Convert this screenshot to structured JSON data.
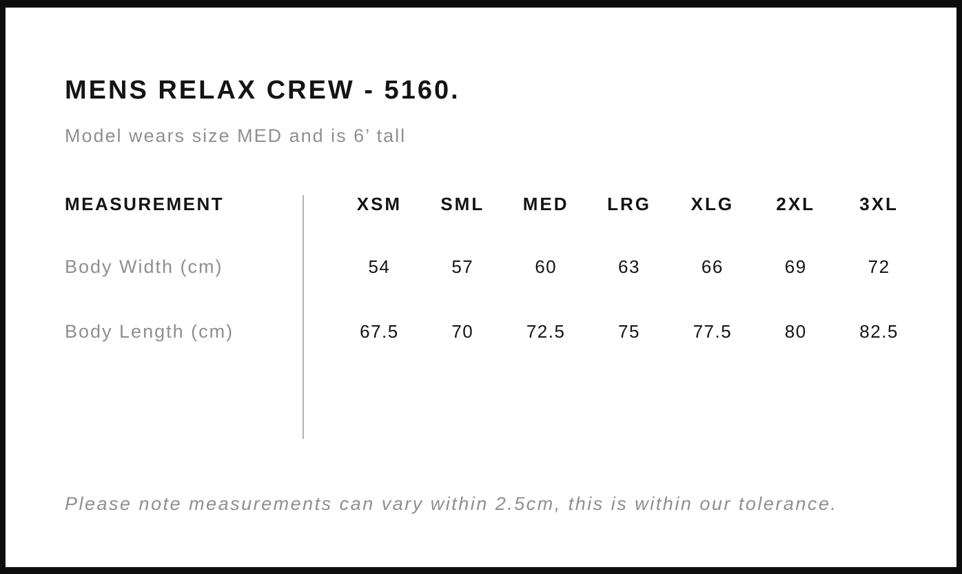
{
  "page": {
    "title": "MENS RELAX CREW - 5160.",
    "subtitle": "Model wears size MED and is 6’ tall",
    "note": "Please note measurements can vary within 2.5cm, this is within our tolerance."
  },
  "chart_data": {
    "type": "table",
    "title": "MENS RELAX CREW - 5160.",
    "measurement_header": "MEASUREMENT",
    "columns": [
      "XSM",
      "SML",
      "MED",
      "LRG",
      "XLG",
      "2XL",
      "3XL"
    ],
    "rows": [
      {
        "label": "Body Width (cm)",
        "values": [
          "54",
          "57",
          "60",
          "63",
          "66",
          "69",
          "72"
        ]
      },
      {
        "label": "Body Length (cm)",
        "values": [
          "67.5",
          "70",
          "72.5",
          "75",
          "77.5",
          "80",
          "82.5"
        ]
      }
    ]
  },
  "colors": {
    "frame": "#0d0d0d",
    "text": "#141414",
    "muted": "#8f8f8f",
    "divider": "#b3b3b3",
    "background": "#ffffff"
  }
}
